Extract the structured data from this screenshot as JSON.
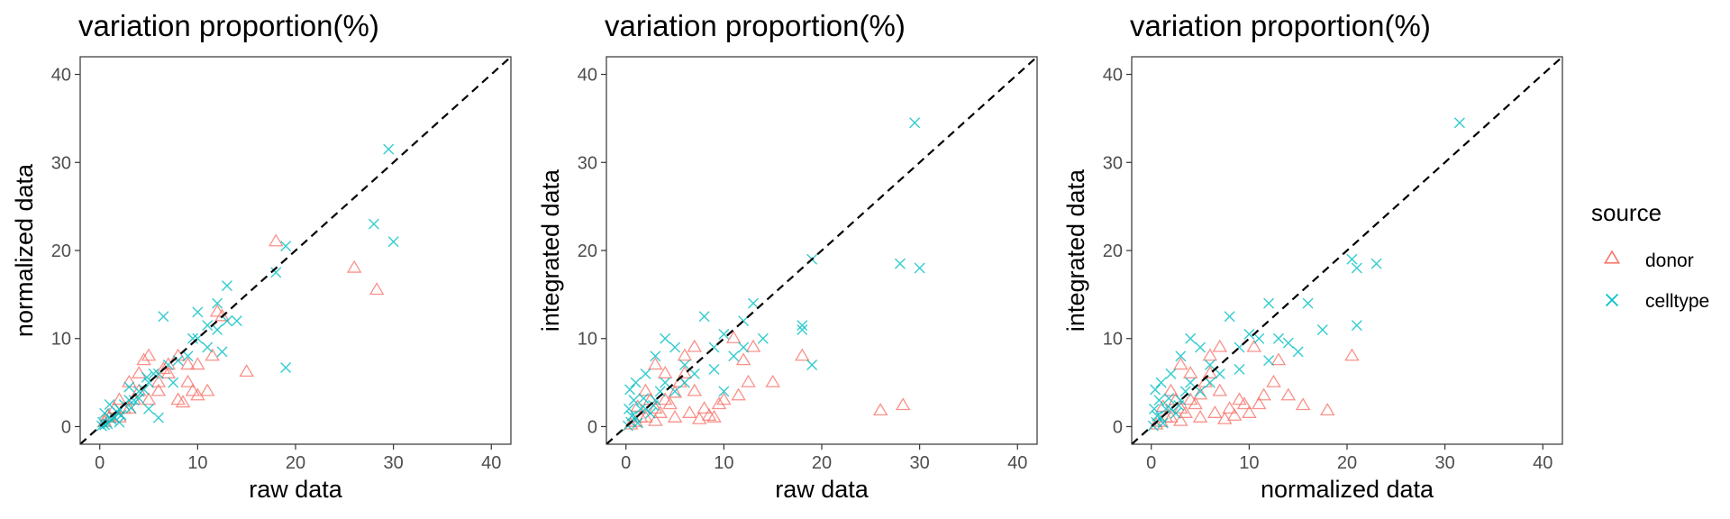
{
  "colors": {
    "donor": "#F8766D",
    "celltype": "#00BFC4"
  },
  "legend": {
    "title": "source",
    "items": [
      {
        "label": "donor",
        "shape": "triangle-icon",
        "color": "#F8766D"
      },
      {
        "label": "celltype",
        "shape": "cross-icon",
        "color": "#00BFC4"
      }
    ]
  },
  "chart_data": [
    {
      "type": "scatter",
      "title": "variation proportion(%)",
      "xlabel": "raw data",
      "ylabel": "normalized data",
      "xlim": [
        -2,
        42
      ],
      "ylim": [
        -2,
        42
      ],
      "xticks": [
        "0",
        "10",
        "20",
        "30",
        "40"
      ],
      "yticks": [
        "0",
        "10",
        "20",
        "30",
        "40"
      ],
      "reference_line": "y = x (dashed)",
      "grid": false,
      "series": [
        {
          "name": "donor",
          "marker": "triangle",
          "points": [
            [
              18,
              21
            ],
            [
              26,
              18
            ],
            [
              28.3,
              15.5
            ],
            [
              15,
              6.2
            ],
            [
              12,
              13
            ],
            [
              9,
              5
            ],
            [
              11,
              4
            ],
            [
              8,
              3
            ],
            [
              10,
              3.5
            ],
            [
              7,
              6
            ],
            [
              6,
              4
            ],
            [
              5,
              8
            ],
            [
              4,
              6
            ],
            [
              3,
              5
            ],
            [
              2.5,
              2
            ],
            [
              1,
              1
            ],
            [
              0.5,
              0.5
            ],
            [
              2,
              3
            ],
            [
              3,
              2
            ],
            [
              4,
              4
            ],
            [
              5,
              3
            ],
            [
              6,
              5
            ],
            [
              7,
              7
            ],
            [
              8,
              8
            ],
            [
              9,
              7
            ],
            [
              1.5,
              2
            ],
            [
              3.5,
              3
            ],
            [
              10,
              7
            ],
            [
              11.5,
              8
            ],
            [
              12.5,
              12.5
            ],
            [
              2,
              1
            ],
            [
              0.8,
              1.2
            ],
            [
              4.5,
              7.5
            ],
            [
              6.5,
              6.5
            ],
            [
              8.5,
              2.7
            ],
            [
              9.5,
              4
            ]
          ]
        },
        {
          "name": "celltype",
          "marker": "x",
          "points": [
            [
              29.5,
              31.5
            ],
            [
              28,
              23
            ],
            [
              30,
              21
            ],
            [
              18,
              17.5
            ],
            [
              19,
              20.5
            ],
            [
              19,
              6.7
            ],
            [
              13,
              16
            ],
            [
              12,
              14
            ],
            [
              10,
              13
            ],
            [
              10,
              10
            ],
            [
              11,
              9
            ],
            [
              9,
              8
            ],
            [
              6.5,
              12.5
            ],
            [
              7,
              7
            ],
            [
              6,
              6
            ],
            [
              5,
              5
            ],
            [
              4,
              4
            ],
            [
              3,
              3
            ],
            [
              2,
              2
            ],
            [
              1,
              1
            ],
            [
              0.5,
              0.2
            ],
            [
              0.3,
              0.5
            ],
            [
              1.5,
              1
            ],
            [
              2.5,
              2.5
            ],
            [
              3.5,
              3
            ],
            [
              4.5,
              4.2
            ],
            [
              5.5,
              6
            ],
            [
              8,
              7.5
            ],
            [
              12,
              11
            ],
            [
              13,
              12
            ],
            [
              11,
              11.5
            ],
            [
              9.5,
              10
            ],
            [
              3,
              4.5
            ],
            [
              1,
              2.5
            ],
            [
              0.5,
              1.5
            ],
            [
              2,
              0.5
            ],
            [
              6,
              1
            ],
            [
              7.5,
              5
            ],
            [
              5,
              2
            ],
            [
              14,
              12
            ],
            [
              12.5,
              8.5
            ],
            [
              1.2,
              0.8
            ],
            [
              0.2,
              0.1
            ],
            [
              0.8,
              0.3
            ],
            [
              1.8,
              1.6
            ],
            [
              2.2,
              1.3
            ],
            [
              3.2,
              2.1
            ],
            [
              4,
              3.2
            ],
            [
              4.8,
              5.6
            ]
          ]
        }
      ]
    },
    {
      "type": "scatter",
      "title": "variation proportion(%)",
      "xlabel": "raw data",
      "ylabel": "integrated data",
      "xlim": [
        -2,
        42
      ],
      "ylim": [
        -2,
        42
      ],
      "xticks": [
        "0",
        "10",
        "20",
        "30",
        "40"
      ],
      "yticks": [
        "0",
        "10",
        "20",
        "30",
        "40"
      ],
      "reference_line": "y = x (dashed)",
      "grid": false,
      "series": [
        {
          "name": "donor",
          "marker": "triangle",
          "points": [
            [
              26,
              1.8
            ],
            [
              28.3,
              2.4
            ],
            [
              18,
              8
            ],
            [
              15,
              5
            ],
            [
              12,
              7.5
            ],
            [
              11,
              10
            ],
            [
              10,
              3
            ],
            [
              9,
              1
            ],
            [
              8,
              2
            ],
            [
              7,
              4
            ],
            [
              6,
              6
            ],
            [
              5,
              1
            ],
            [
              4,
              3
            ],
            [
              3,
              2
            ],
            [
              2,
              1
            ],
            [
              1,
              0.5
            ],
            [
              0.5,
              0.2
            ],
            [
              1.5,
              1
            ],
            [
              2.5,
              3
            ],
            [
              3.5,
              1.5
            ],
            [
              4.5,
              2.5
            ],
            [
              5.5,
              5
            ],
            [
              6.5,
              1.5
            ],
            [
              7.5,
              0.8
            ],
            [
              8.5,
              1.2
            ],
            [
              9.5,
              2.5
            ],
            [
              11.5,
              3.5
            ],
            [
              12.5,
              5
            ],
            [
              13,
              9
            ],
            [
              4,
              6
            ],
            [
              3,
              7
            ],
            [
              2,
              4
            ],
            [
              6,
              8
            ],
            [
              7,
              9
            ],
            [
              5,
              3.8
            ],
            [
              3,
              0.6
            ],
            [
              1.2,
              2.2
            ]
          ]
        },
        {
          "name": "celltype",
          "marker": "x",
          "points": [
            [
              29.5,
              34.5
            ],
            [
              28,
              18.5
            ],
            [
              30,
              18
            ],
            [
              19,
              19
            ],
            [
              19,
              7
            ],
            [
              18,
              11
            ],
            [
              18,
              11.5
            ],
            [
              13,
              14
            ],
            [
              12,
              12
            ],
            [
              10,
              10.5
            ],
            [
              11,
              8
            ],
            [
              9,
              9
            ],
            [
              8,
              12.5
            ],
            [
              7,
              6
            ],
            [
              6,
              7
            ],
            [
              5,
              4
            ],
            [
              4,
              5
            ],
            [
              3,
              3
            ],
            [
              2,
              2
            ],
            [
              1,
              1
            ],
            [
              0.5,
              0.5
            ],
            [
              0.2,
              0.1
            ],
            [
              1.5,
              2
            ],
            [
              2.5,
              1.5
            ],
            [
              3.5,
              4
            ],
            [
              0.8,
              3
            ],
            [
              0.3,
              2
            ],
            [
              1,
              5
            ],
            [
              2,
              6
            ],
            [
              3,
              8
            ],
            [
              4,
              10
            ],
            [
              5,
              9
            ],
            [
              6,
              5
            ],
            [
              10,
              4
            ],
            [
              12,
              9
            ],
            [
              14,
              10
            ],
            [
              9,
              6.5
            ],
            [
              0.6,
              1.2
            ],
            [
              1.2,
              0.4
            ],
            [
              1.8,
              3.2
            ],
            [
              2.8,
              2.4
            ],
            [
              0.4,
              4.2
            ]
          ]
        }
      ]
    },
    {
      "type": "scatter",
      "title": "variation proportion(%)",
      "xlabel": "normalized data",
      "ylabel": "integrated data",
      "xlim": [
        -2,
        42
      ],
      "ylim": [
        -2,
        42
      ],
      "xticks": [
        "0",
        "10",
        "20",
        "30",
        "40"
      ],
      "yticks": [
        "0",
        "10",
        "20",
        "30",
        "40"
      ],
      "reference_line": "y = x (dashed)",
      "grid": false,
      "series": [
        {
          "name": "donor",
          "marker": "triangle",
          "points": [
            [
              18,
              1.8
            ],
            [
              15.5,
              2.4
            ],
            [
              20.5,
              8
            ],
            [
              13,
              7.5
            ],
            [
              12.5,
              5
            ],
            [
              14,
              3.5
            ],
            [
              11,
              2.5
            ],
            [
              10,
              1.5
            ],
            [
              9,
              3
            ],
            [
              8,
              2
            ],
            [
              7,
              4
            ],
            [
              6,
              6
            ],
            [
              5,
              1
            ],
            [
              4,
              3
            ],
            [
              3,
              2
            ],
            [
              2,
              1
            ],
            [
              1,
              0.5
            ],
            [
              0.5,
              0.2
            ],
            [
              1.5,
              1
            ],
            [
              2.5,
              3
            ],
            [
              3.5,
              1.5
            ],
            [
              4.5,
              2.5
            ],
            [
              5.5,
              5
            ],
            [
              6.5,
              1.5
            ],
            [
              7.5,
              0.8
            ],
            [
              8.5,
              1.2
            ],
            [
              9.5,
              2.5
            ],
            [
              11.5,
              3.5
            ],
            [
              10.5,
              9
            ],
            [
              4,
              6
            ],
            [
              3,
              7
            ],
            [
              2,
              4
            ],
            [
              6,
              8
            ],
            [
              7,
              9
            ],
            [
              5,
              3.6
            ],
            [
              3,
              0.6
            ],
            [
              1.2,
              2.2
            ]
          ]
        },
        {
          "name": "celltype",
          "marker": "x",
          "points": [
            [
              31.5,
              34.5
            ],
            [
              23,
              18.5
            ],
            [
              21,
              18
            ],
            [
              20.5,
              19
            ],
            [
              21,
              11.5
            ],
            [
              17.5,
              11
            ],
            [
              16,
              14
            ],
            [
              13,
              10
            ],
            [
              12,
              14
            ],
            [
              11,
              10
            ],
            [
              10,
              10.5
            ],
            [
              9,
              9
            ],
            [
              8,
              12.5
            ],
            [
              7,
              6
            ],
            [
              6,
              7
            ],
            [
              5,
              4
            ],
            [
              4,
              5
            ],
            [
              3,
              3
            ],
            [
              2,
              2
            ],
            [
              1,
              1
            ],
            [
              0.5,
              0.5
            ],
            [
              0.2,
              0.1
            ],
            [
              1.5,
              2
            ],
            [
              2.5,
              1.5
            ],
            [
              3.5,
              4
            ],
            [
              0.8,
              3
            ],
            [
              0.3,
              2
            ],
            [
              1,
              5
            ],
            [
              2,
              6
            ],
            [
              3,
              8
            ],
            [
              4,
              10
            ],
            [
              5,
              9
            ],
            [
              6,
              5
            ],
            [
              12,
              7.5
            ],
            [
              14,
              9.5
            ],
            [
              15,
              8.5
            ],
            [
              9,
              6.5
            ],
            [
              0.6,
              1.2
            ],
            [
              1.2,
              0.4
            ],
            [
              1.8,
              3.2
            ],
            [
              2.8,
              2.4
            ],
            [
              0.4,
              4.2
            ]
          ]
        }
      ]
    }
  ]
}
